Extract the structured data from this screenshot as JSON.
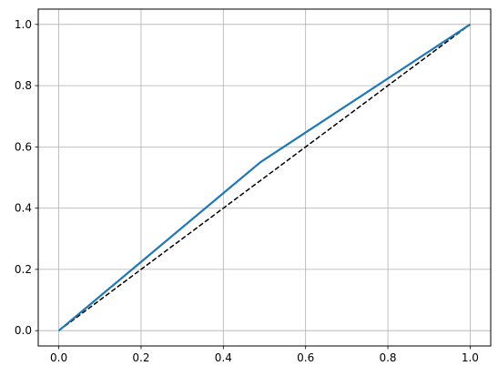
{
  "chart_data": {
    "type": "line",
    "title": "",
    "xlabel": "",
    "ylabel": "",
    "xlim": [
      -0.05,
      1.05
    ],
    "ylim": [
      -0.05,
      1.05
    ],
    "grid": true,
    "legend": "none",
    "xticks": [
      "0.0",
      "0.2",
      "0.4",
      "0.6",
      "0.8",
      "1.0"
    ],
    "yticks": [
      "0.0",
      "0.2",
      "0.4",
      "0.6",
      "0.8",
      "1.0"
    ],
    "series": [
      {
        "x": [
          0.0,
          0.49,
          1.0
        ],
        "y": [
          0.0,
          0.55,
          1.0
        ],
        "color": "#1f77b4",
        "style": "solid"
      },
      {
        "x": [
          0.0,
          1.0
        ],
        "y": [
          0.0,
          1.0
        ],
        "color": "#000000",
        "style": "dashed"
      }
    ]
  }
}
